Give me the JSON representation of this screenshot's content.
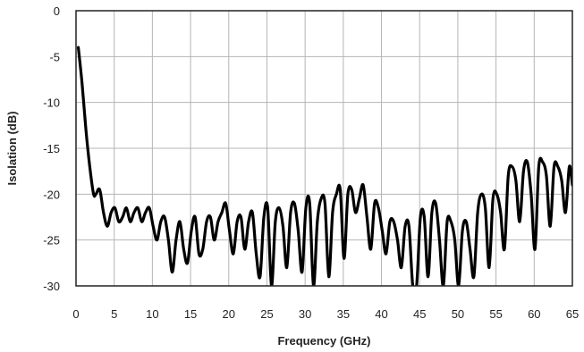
{
  "chart_data": {
    "type": "line",
    "title": "",
    "xlabel": "Frequency (GHz)",
    "ylabel": "Isolation (dB)",
    "xlim": [
      0,
      65
    ],
    "ylim": [
      0,
      30
    ],
    "y_inverted": true,
    "grid": true,
    "legend": "none",
    "x_ticks": [
      0,
      5,
      10,
      15,
      20,
      25,
      30,
      35,
      40,
      45,
      50,
      55,
      60,
      65
    ],
    "y_ticks": [
      0,
      5,
      10,
      15,
      20,
      25,
      30
    ],
    "y_tick_labels": [
      "0",
      "-5",
      "-10",
      "-15",
      "-20",
      "-25",
      "-30"
    ],
    "series": [
      {
        "color": "#000000",
        "x": [
          0.3,
          0.8,
          1.3,
          1.8,
          2.3,
          2.6,
          3.1,
          3.6,
          4.1,
          4.6,
          5.1,
          5.6,
          6.1,
          6.6,
          7.1,
          7.6,
          8.1,
          8.6,
          9.1,
          9.6,
          10.1,
          10.6,
          11.1,
          11.6,
          12.1,
          12.6,
          13.1,
          13.6,
          14.1,
          14.6,
          15.1,
          15.6,
          16.1,
          16.6,
          17.1,
          17.6,
          18.1,
          18.6,
          19.1,
          19.6,
          20.1,
          20.6,
          21.1,
          21.6,
          22.1,
          22.6,
          23.1,
          23.6,
          24.1,
          24.6,
          25.1,
          25.6,
          26.1,
          26.6,
          27.1,
          27.6,
          28.1,
          28.6,
          29.1,
          29.6,
          30.1,
          30.6,
          31.1,
          31.6,
          32.1,
          32.6,
          33.1,
          33.6,
          34.1,
          34.6,
          35.1,
          35.6,
          36.1,
          36.6,
          37.1,
          37.6,
          38.1,
          38.6,
          39.1,
          39.6,
          40.1,
          40.6,
          41.1,
          41.6,
          42.1,
          42.6,
          43.1,
          43.6,
          44.1,
          44.6,
          45.1,
          45.6,
          46.1,
          46.6,
          47.1,
          47.6,
          48.1,
          48.6,
          49.1,
          49.6,
          50.1,
          50.6,
          51.1,
          51.6,
          52.1,
          52.6,
          53.1,
          53.6,
          54.1,
          54.6,
          55.1,
          55.6,
          56.1,
          56.6,
          57.1,
          57.6,
          58.1,
          58.6,
          59.1,
          59.6,
          60.1,
          60.6,
          61.1,
          61.6,
          62.1,
          62.6,
          63.1,
          63.6,
          64.1,
          64.6,
          65.0
        ],
        "values": [
          4,
          8,
          13,
          17,
          20,
          20,
          19.5,
          22,
          23.5,
          22,
          21.5,
          23,
          22.5,
          21.5,
          23,
          22,
          21.5,
          23,
          22,
          21.5,
          23.5,
          25,
          23,
          22.5,
          25,
          28.5,
          25,
          23,
          26,
          27.5,
          24,
          22.5,
          26.5,
          26,
          23,
          22.5,
          25,
          23,
          22,
          21,
          24,
          26.5,
          23,
          22.5,
          26,
          23,
          22,
          26.5,
          29,
          22.5,
          21.5,
          30,
          23,
          21.5,
          23.5,
          28,
          22,
          21,
          24,
          28.5,
          21.5,
          21,
          30,
          23,
          20.5,
          21,
          29,
          22,
          20,
          19.5,
          27,
          20,
          19.5,
          22,
          20.5,
          19,
          22.5,
          26,
          21,
          21.5,
          24,
          26.5,
          23,
          23,
          25,
          28,
          23.5,
          23.5,
          30,
          30,
          22.5,
          22.5,
          29,
          22,
          21,
          25,
          30,
          23,
          23,
          25,
          30,
          24,
          23,
          26,
          29,
          22,
          20,
          21.5,
          28,
          20.5,
          20,
          22,
          26,
          18,
          17,
          18.5,
          23,
          17.5,
          16.5,
          20,
          26,
          17,
          16.5,
          18,
          23.5,
          17,
          17,
          18.5,
          22,
          17,
          19
        ]
      }
    ]
  }
}
